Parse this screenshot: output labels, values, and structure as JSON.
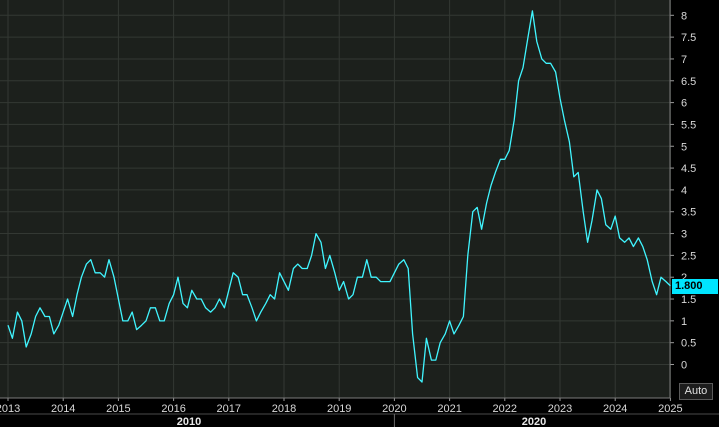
{
  "chart_data": {
    "type": "line",
    "colors": {
      "background": "#000000",
      "plot_area": "#1c201c",
      "grid": "#333833",
      "series": "#40f5ff",
      "badge": "#00e5ff",
      "text": "#d8d8d8"
    },
    "ylim": [
      -0.6,
      8.3
    ],
    "y_ticks": [
      "8",
      "7.5",
      "7",
      "6.5",
      "6",
      "5.5",
      "5",
      "4.5",
      "4",
      "3.5",
      "3",
      "2.5",
      "2",
      "1.5",
      "1",
      "0.5",
      "0"
    ],
    "x_ticks": [
      "2013",
      "2014",
      "2015",
      "2016",
      "2017",
      "2018",
      "2019",
      "2020",
      "2021",
      "2022",
      "2023",
      "2024",
      "2025"
    ],
    "xlim": [
      2013.0,
      2025.2
    ],
    "decade_labels": [
      "2010",
      "2020"
    ],
    "last_value_label": "1.800",
    "auto_label": "Auto",
    "x": [
      2013.0,
      2013.08,
      2013.17,
      2013.25,
      2013.33,
      2013.42,
      2013.5,
      2013.58,
      2013.67,
      2013.75,
      2013.83,
      2013.92,
      2014.0,
      2014.08,
      2014.17,
      2014.25,
      2014.33,
      2014.42,
      2014.5,
      2014.58,
      2014.67,
      2014.75,
      2014.83,
      2014.92,
      2015.0,
      2015.08,
      2015.17,
      2015.25,
      2015.33,
      2015.42,
      2015.5,
      2015.58,
      2015.67,
      2015.75,
      2015.83,
      2015.92,
      2016.0,
      2016.08,
      2016.17,
      2016.25,
      2016.33,
      2016.42,
      2016.5,
      2016.58,
      2016.67,
      2016.75,
      2016.83,
      2016.92,
      2017.0,
      2017.08,
      2017.17,
      2017.25,
      2017.33,
      2017.42,
      2017.5,
      2017.58,
      2017.67,
      2017.75,
      2017.83,
      2017.92,
      2018.0,
      2018.08,
      2018.17,
      2018.25,
      2018.33,
      2018.42,
      2018.5,
      2018.58,
      2018.67,
      2018.75,
      2018.83,
      2018.92,
      2019.0,
      2019.08,
      2019.17,
      2019.25,
      2019.33,
      2019.42,
      2019.5,
      2019.58,
      2019.67,
      2019.75,
      2019.83,
      2019.92,
      2020.0,
      2020.08,
      2020.17,
      2020.25,
      2020.33,
      2020.42,
      2020.5,
      2020.58,
      2020.67,
      2020.75,
      2020.83,
      2020.92,
      2021.0,
      2021.08,
      2021.17,
      2021.25,
      2021.33,
      2021.42,
      2021.5,
      2021.58,
      2021.67,
      2021.75,
      2021.83,
      2021.92,
      2022.0,
      2022.08,
      2022.17,
      2022.25,
      2022.33,
      2022.42,
      2022.5,
      2022.58,
      2022.67,
      2022.75,
      2022.83,
      2022.92,
      2023.0,
      2023.08,
      2023.17,
      2023.25,
      2023.33,
      2023.42,
      2023.5,
      2023.58,
      2023.67,
      2023.75,
      2023.83,
      2023.92,
      2024.0,
      2024.08,
      2024.17,
      2024.25,
      2024.33,
      2024.42,
      2024.5,
      2024.58,
      2024.67,
      2024.75,
      2024.83,
      2024.92,
      2025.0
    ],
    "y": [
      0.9,
      0.6,
      1.2,
      1.0,
      0.4,
      0.7,
      1.1,
      1.3,
      1.1,
      1.1,
      0.7,
      0.9,
      1.2,
      1.5,
      1.1,
      1.6,
      2.0,
      2.3,
      2.4,
      2.1,
      2.1,
      2.0,
      2.4,
      2.0,
      1.5,
      1.0,
      1.0,
      1.2,
      0.8,
      0.9,
      1.0,
      1.3,
      1.3,
      1.0,
      1.0,
      1.4,
      1.6,
      2.0,
      1.4,
      1.3,
      1.7,
      1.5,
      1.5,
      1.3,
      1.2,
      1.3,
      1.5,
      1.3,
      1.7,
      2.1,
      2.0,
      1.6,
      1.6,
      1.3,
      1.0,
      1.2,
      1.4,
      1.6,
      1.5,
      2.1,
      1.9,
      1.7,
      2.2,
      2.3,
      2.2,
      2.2,
      2.5,
      3.0,
      2.8,
      2.2,
      2.5,
      2.1,
      1.7,
      1.9,
      1.5,
      1.6,
      2.0,
      2.0,
      2.4,
      2.0,
      2.0,
      1.9,
      1.9,
      1.9,
      2.1,
      2.3,
      2.4,
      2.2,
      0.7,
      -0.3,
      -0.4,
      0.6,
      0.1,
      0.1,
      0.5,
      0.7,
      1.0,
      0.7,
      0.9,
      1.1,
      2.5,
      3.5,
      3.6,
      3.1,
      3.7,
      4.1,
      4.4,
      4.7,
      4.7,
      4.9,
      5.6,
      6.5,
      6.8,
      7.5,
      8.1,
      7.4,
      7.0,
      6.9,
      6.9,
      6.7,
      6.1,
      5.6,
      5.1,
      4.3,
      4.4,
      3.5,
      2.8,
      3.3,
      4.0,
      3.8,
      3.2,
      3.1,
      3.4,
      2.9,
      2.8,
      2.9,
      2.7,
      2.9,
      2.7,
      2.4,
      1.9,
      1.6,
      2.0,
      1.9,
      1.8
    ]
  }
}
